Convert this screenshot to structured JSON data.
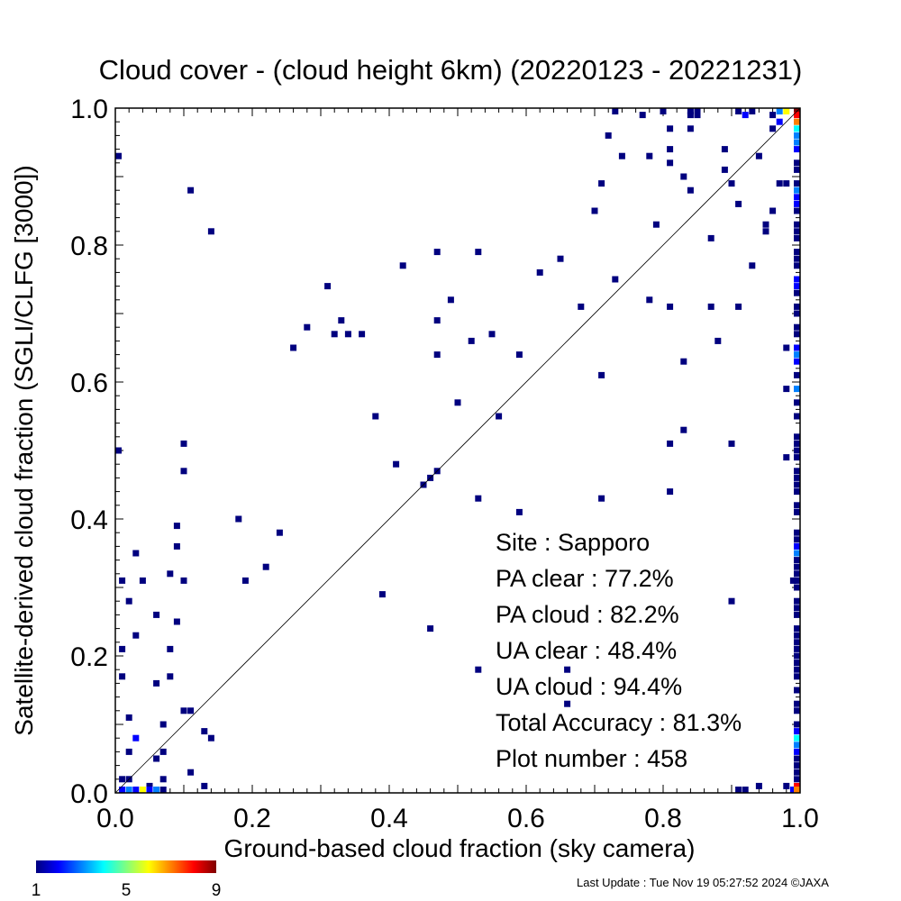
{
  "chart_data": {
    "type": "heatmap",
    "title": "Cloud cover - (cloud height 6km)  (20220123 - 20221231)",
    "xlabel": "Ground-based cloud fraction (sky camera)",
    "ylabel": "Satellite-derived cloud fraction (SGLI/CLFG [3000])",
    "xlim": [
      0,
      1
    ],
    "ylim": [
      0,
      1
    ],
    "x_ticks": [
      "0.0",
      "0.2",
      "0.4",
      "0.6",
      "0.8",
      "1.0"
    ],
    "y_ticks": [
      "0.0",
      "0.2",
      "0.4",
      "0.6",
      "0.8",
      "1.0"
    ],
    "diagonal_line": true,
    "stats": [
      {
        "label": "Site : Sapporo"
      },
      {
        "label": "PA clear :  77.2%"
      },
      {
        "label": "PA cloud :  82.2%"
      },
      {
        "label": "UA clear :  48.4%"
      },
      {
        "label": "UA cloud :  94.4%"
      },
      {
        "label": "Total Accuracy :  81.3%"
      },
      {
        "label": "Plot number :       458"
      }
    ],
    "colorbar": {
      "min": 1,
      "max": 9,
      "ticks": [
        "1",
        "5",
        "9"
      ]
    },
    "points": [
      {
        "x": 0.0,
        "y": 0.93,
        "c": 1
      },
      {
        "x": 0.0,
        "y": 0.5,
        "c": 1
      },
      {
        "x": 0.11,
        "y": 0.88,
        "c": 1
      },
      {
        "x": 0.14,
        "y": 0.82,
        "c": 1
      },
      {
        "x": 0.1,
        "y": 0.51,
        "c": 1
      },
      {
        "x": 0.1,
        "y": 0.47,
        "c": 1
      },
      {
        "x": 0.18,
        "y": 0.4,
        "c": 1
      },
      {
        "x": 0.24,
        "y": 0.38,
        "c": 1
      },
      {
        "x": 0.19,
        "y": 0.31,
        "c": 1
      },
      {
        "x": 0.22,
        "y": 0.33,
        "c": 1
      },
      {
        "x": 0.09,
        "y": 0.39,
        "c": 1
      },
      {
        "x": 0.09,
        "y": 0.36,
        "c": 1
      },
      {
        "x": 0.03,
        "y": 0.35,
        "c": 1
      },
      {
        "x": 0.01,
        "y": 0.31,
        "c": 1
      },
      {
        "x": 0.04,
        "y": 0.31,
        "c": 1
      },
      {
        "x": 0.08,
        "y": 0.32,
        "c": 1
      },
      {
        "x": 0.1,
        "y": 0.31,
        "c": 1
      },
      {
        "x": 0.02,
        "y": 0.28,
        "c": 1
      },
      {
        "x": 0.06,
        "y": 0.26,
        "c": 1
      },
      {
        "x": 0.09,
        "y": 0.25,
        "c": 1
      },
      {
        "x": 0.03,
        "y": 0.23,
        "c": 1
      },
      {
        "x": 0.01,
        "y": 0.21,
        "c": 1
      },
      {
        "x": 0.08,
        "y": 0.21,
        "c": 1
      },
      {
        "x": 0.01,
        "y": 0.17,
        "c": 1
      },
      {
        "x": 0.06,
        "y": 0.16,
        "c": 1
      },
      {
        "x": 0.08,
        "y": 0.17,
        "c": 1
      },
      {
        "x": 0.1,
        "y": 0.12,
        "c": 1
      },
      {
        "x": 0.11,
        "y": 0.12,
        "c": 1
      },
      {
        "x": 0.02,
        "y": 0.11,
        "c": 1
      },
      {
        "x": 0.07,
        "y": 0.1,
        "c": 1
      },
      {
        "x": 0.13,
        "y": 0.09,
        "c": 1
      },
      {
        "x": 0.14,
        "y": 0.08,
        "c": 1
      },
      {
        "x": 0.03,
        "y": 0.08,
        "c": 2
      },
      {
        "x": 0.02,
        "y": 0.06,
        "c": 1
      },
      {
        "x": 0.07,
        "y": 0.06,
        "c": 1
      },
      {
        "x": 0.06,
        "y": 0.05,
        "c": 1
      },
      {
        "x": 0.11,
        "y": 0.03,
        "c": 1
      },
      {
        "x": 0.07,
        "y": 0.02,
        "c": 1
      },
      {
        "x": 0.13,
        "y": 0.01,
        "c": 1
      },
      {
        "x": 0.01,
        "y": 0.02,
        "c": 1
      },
      {
        "x": 0.02,
        "y": 0.02,
        "c": 1
      },
      {
        "x": 0.05,
        "y": 0.01,
        "c": 1
      },
      {
        "x": 0.01,
        "y": 0.0,
        "c": 2
      },
      {
        "x": 0.02,
        "y": 0.0,
        "c": 3
      },
      {
        "x": 0.03,
        "y": 0.0,
        "c": 2
      },
      {
        "x": 0.04,
        "y": 0.0,
        "c": 6
      },
      {
        "x": 0.05,
        "y": 0.0,
        "c": 2
      },
      {
        "x": 0.06,
        "y": 0.0,
        "c": 3
      },
      {
        "x": 0.07,
        "y": 0.0,
        "c": 1
      },
      {
        "x": 0.26,
        "y": 0.65,
        "c": 1
      },
      {
        "x": 0.28,
        "y": 0.68,
        "c": 1
      },
      {
        "x": 0.31,
        "y": 0.74,
        "c": 1
      },
      {
        "x": 0.32,
        "y": 0.67,
        "c": 1
      },
      {
        "x": 0.33,
        "y": 0.69,
        "c": 1
      },
      {
        "x": 0.34,
        "y": 0.67,
        "c": 1
      },
      {
        "x": 0.36,
        "y": 0.67,
        "c": 1
      },
      {
        "x": 0.38,
        "y": 0.55,
        "c": 1
      },
      {
        "x": 0.39,
        "y": 0.29,
        "c": 1
      },
      {
        "x": 0.41,
        "y": 0.48,
        "c": 1
      },
      {
        "x": 0.42,
        "y": 0.77,
        "c": 1
      },
      {
        "x": 0.45,
        "y": 0.45,
        "c": 1
      },
      {
        "x": 0.46,
        "y": 0.46,
        "c": 1
      },
      {
        "x": 0.47,
        "y": 0.47,
        "c": 1
      },
      {
        "x": 0.47,
        "y": 0.79,
        "c": 1
      },
      {
        "x": 0.47,
        "y": 0.69,
        "c": 1
      },
      {
        "x": 0.47,
        "y": 0.64,
        "c": 1
      },
      {
        "x": 0.46,
        "y": 0.24,
        "c": 1
      },
      {
        "x": 0.49,
        "y": 0.72,
        "c": 1
      },
      {
        "x": 0.5,
        "y": 0.57,
        "c": 1
      },
      {
        "x": 0.52,
        "y": 0.66,
        "c": 1
      },
      {
        "x": 0.53,
        "y": 0.79,
        "c": 1
      },
      {
        "x": 0.53,
        "y": 0.43,
        "c": 1
      },
      {
        "x": 0.53,
        "y": 0.18,
        "c": 1
      },
      {
        "x": 0.55,
        "y": 0.67,
        "c": 1
      },
      {
        "x": 0.56,
        "y": 0.55,
        "c": 1
      },
      {
        "x": 0.59,
        "y": 0.64,
        "c": 1
      },
      {
        "x": 0.59,
        "y": 0.41,
        "c": 1
      },
      {
        "x": 0.62,
        "y": 0.76,
        "c": 1
      },
      {
        "x": 0.65,
        "y": 0.78,
        "c": 1
      },
      {
        "x": 0.66,
        "y": 0.18,
        "c": 1
      },
      {
        "x": 0.66,
        "y": 0.13,
        "c": 1
      },
      {
        "x": 0.68,
        "y": 0.71,
        "c": 1
      },
      {
        "x": 0.7,
        "y": 0.85,
        "c": 1
      },
      {
        "x": 0.71,
        "y": 0.89,
        "c": 1
      },
      {
        "x": 0.71,
        "y": 0.61,
        "c": 1
      },
      {
        "x": 0.71,
        "y": 0.43,
        "c": 1
      },
      {
        "x": 0.72,
        "y": 0.96,
        "c": 1
      },
      {
        "x": 0.73,
        "y": 0.75,
        "c": 1
      },
      {
        "x": 0.73,
        "y": 1.0,
        "c": 1
      },
      {
        "x": 0.74,
        "y": 0.93,
        "c": 1
      },
      {
        "x": 0.77,
        "y": 0.99,
        "c": 1
      },
      {
        "x": 0.78,
        "y": 0.93,
        "c": 1
      },
      {
        "x": 0.78,
        "y": 0.72,
        "c": 1
      },
      {
        "x": 0.79,
        "y": 0.83,
        "c": 1
      },
      {
        "x": 0.8,
        "y": 1.0,
        "c": 1
      },
      {
        "x": 0.81,
        "y": 0.97,
        "c": 1
      },
      {
        "x": 0.81,
        "y": 0.94,
        "c": 1
      },
      {
        "x": 0.81,
        "y": 0.92,
        "c": 1
      },
      {
        "x": 0.81,
        "y": 0.71,
        "c": 1
      },
      {
        "x": 0.81,
        "y": 0.51,
        "c": 1
      },
      {
        "x": 0.81,
        "y": 0.44,
        "c": 1
      },
      {
        "x": 0.83,
        "y": 0.9,
        "c": 1
      },
      {
        "x": 0.83,
        "y": 0.63,
        "c": 1
      },
      {
        "x": 0.83,
        "y": 0.53,
        "c": 1
      },
      {
        "x": 0.84,
        "y": 0.88,
        "c": 1
      },
      {
        "x": 0.84,
        "y": 0.99,
        "c": 1
      },
      {
        "x": 0.84,
        "y": 1.0,
        "c": 1
      },
      {
        "x": 0.85,
        "y": 0.99,
        "c": 1
      },
      {
        "x": 0.85,
        "y": 1.0,
        "c": 1
      },
      {
        "x": 0.84,
        "y": 0.97,
        "c": 1
      },
      {
        "x": 0.87,
        "y": 0.81,
        "c": 1
      },
      {
        "x": 0.87,
        "y": 0.71,
        "c": 1
      },
      {
        "x": 0.88,
        "y": 0.66,
        "c": 1
      },
      {
        "x": 0.89,
        "y": 0.94,
        "c": 1
      },
      {
        "x": 0.89,
        "y": 0.91,
        "c": 1
      },
      {
        "x": 0.9,
        "y": 0.89,
        "c": 1
      },
      {
        "x": 0.9,
        "y": 0.51,
        "c": 1
      },
      {
        "x": 0.9,
        "y": 0.28,
        "c": 1
      },
      {
        "x": 0.91,
        "y": 0.86,
        "c": 1
      },
      {
        "x": 0.91,
        "y": 0.71,
        "c": 1
      },
      {
        "x": 0.91,
        "y": 1.0,
        "c": 1
      },
      {
        "x": 0.92,
        "y": 0.99,
        "c": 2
      },
      {
        "x": 0.93,
        "y": 1.0,
        "c": 1
      },
      {
        "x": 0.93,
        "y": 0.77,
        "c": 1
      },
      {
        "x": 0.94,
        "y": 0.93,
        "c": 1
      },
      {
        "x": 0.95,
        "y": 0.83,
        "c": 1
      },
      {
        "x": 0.95,
        "y": 0.82,
        "c": 1
      },
      {
        "x": 0.96,
        "y": 0.85,
        "c": 1
      },
      {
        "x": 0.96,
        "y": 0.99,
        "c": 1
      },
      {
        "x": 0.96,
        "y": 0.97,
        "c": 1
      },
      {
        "x": 0.97,
        "y": 0.98,
        "c": 2
      },
      {
        "x": 0.97,
        "y": 0.89,
        "c": 1
      },
      {
        "x": 0.98,
        "y": 0.89,
        "c": 1
      },
      {
        "x": 0.97,
        "y": 1.0,
        "c": 3
      },
      {
        "x": 0.98,
        "y": 1.0,
        "c": 6
      },
      {
        "x": 0.98,
        "y": 0.59,
        "c": 1
      },
      {
        "x": 0.98,
        "y": 0.49,
        "c": 1
      },
      {
        "x": 0.98,
        "y": 0.65,
        "c": 1
      },
      {
        "x": 0.99,
        "y": 0.31,
        "c": 1
      },
      {
        "x": 0.91,
        "y": 0.0,
        "c": 1
      },
      {
        "x": 0.92,
        "y": 0.0,
        "c": 1
      },
      {
        "x": 0.94,
        "y": 0.01,
        "c": 1
      },
      {
        "x": 0.98,
        "y": 0.01,
        "c": 1
      },
      {
        "x": 0.99,
        "y": 0.0,
        "c": 2
      },
      {
        "x": 1.0,
        "y": 1.0,
        "c": 9
      },
      {
        "x": 1.0,
        "y": 0.99,
        "c": 8
      },
      {
        "x": 1.0,
        "y": 0.98,
        "c": 7
      },
      {
        "x": 1.0,
        "y": 0.97,
        "c": 4
      },
      {
        "x": 1.0,
        "y": 0.96,
        "c": 3
      },
      {
        "x": 1.0,
        "y": 0.95,
        "c": 3
      },
      {
        "x": 1.0,
        "y": 0.94,
        "c": 2
      },
      {
        "x": 1.0,
        "y": 0.92,
        "c": 1
      },
      {
        "x": 1.0,
        "y": 0.91,
        "c": 1
      },
      {
        "x": 1.0,
        "y": 0.89,
        "c": 1
      },
      {
        "x": 1.0,
        "y": 0.88,
        "c": 3
      },
      {
        "x": 1.0,
        "y": 0.87,
        "c": 2
      },
      {
        "x": 1.0,
        "y": 0.86,
        "c": 2
      },
      {
        "x": 1.0,
        "y": 0.85,
        "c": 1
      },
      {
        "x": 1.0,
        "y": 0.83,
        "c": 1
      },
      {
        "x": 1.0,
        "y": 0.82,
        "c": 1
      },
      {
        "x": 1.0,
        "y": 0.81,
        "c": 1
      },
      {
        "x": 1.0,
        "y": 0.79,
        "c": 1
      },
      {
        "x": 1.0,
        "y": 0.78,
        "c": 1
      },
      {
        "x": 1.0,
        "y": 0.77,
        "c": 1
      },
      {
        "x": 1.0,
        "y": 0.75,
        "c": 2
      },
      {
        "x": 1.0,
        "y": 0.74,
        "c": 2
      },
      {
        "x": 1.0,
        "y": 0.73,
        "c": 1
      },
      {
        "x": 1.0,
        "y": 0.71,
        "c": 1
      },
      {
        "x": 1.0,
        "y": 0.7,
        "c": 1
      },
      {
        "x": 1.0,
        "y": 0.68,
        "c": 1
      },
      {
        "x": 1.0,
        "y": 0.67,
        "c": 1
      },
      {
        "x": 1.0,
        "y": 0.65,
        "c": 2
      },
      {
        "x": 1.0,
        "y": 0.64,
        "c": 3
      },
      {
        "x": 1.0,
        "y": 0.63,
        "c": 2
      },
      {
        "x": 1.0,
        "y": 0.61,
        "c": 1
      },
      {
        "x": 1.0,
        "y": 0.59,
        "c": 3
      },
      {
        "x": 1.0,
        "y": 0.57,
        "c": 1
      },
      {
        "x": 1.0,
        "y": 0.55,
        "c": 1
      },
      {
        "x": 1.0,
        "y": 0.52,
        "c": 1
      },
      {
        "x": 1.0,
        "y": 0.51,
        "c": 1
      },
      {
        "x": 1.0,
        "y": 0.5,
        "c": 1
      },
      {
        "x": 1.0,
        "y": 0.49,
        "c": 1
      },
      {
        "x": 1.0,
        "y": 0.47,
        "c": 1
      },
      {
        "x": 1.0,
        "y": 0.46,
        "c": 1
      },
      {
        "x": 1.0,
        "y": 0.45,
        "c": 1
      },
      {
        "x": 1.0,
        "y": 0.44,
        "c": 1
      },
      {
        "x": 1.0,
        "y": 0.42,
        "c": 1
      },
      {
        "x": 1.0,
        "y": 0.41,
        "c": 1
      },
      {
        "x": 1.0,
        "y": 0.38,
        "c": 1
      },
      {
        "x": 1.0,
        "y": 0.37,
        "c": 1
      },
      {
        "x": 1.0,
        "y": 0.36,
        "c": 2
      },
      {
        "x": 1.0,
        "y": 0.35,
        "c": 3
      },
      {
        "x": 1.0,
        "y": 0.34,
        "c": 1
      },
      {
        "x": 1.0,
        "y": 0.33,
        "c": 1
      },
      {
        "x": 1.0,
        "y": 0.32,
        "c": 1
      },
      {
        "x": 1.0,
        "y": 0.31,
        "c": 1
      },
      {
        "x": 1.0,
        "y": 0.3,
        "c": 1
      },
      {
        "x": 1.0,
        "y": 0.28,
        "c": 1
      },
      {
        "x": 1.0,
        "y": 0.27,
        "c": 1
      },
      {
        "x": 1.0,
        "y": 0.26,
        "c": 1
      },
      {
        "x": 1.0,
        "y": 0.24,
        "c": 1
      },
      {
        "x": 1.0,
        "y": 0.23,
        "c": 1
      },
      {
        "x": 1.0,
        "y": 0.22,
        "c": 1
      },
      {
        "x": 1.0,
        "y": 0.21,
        "c": 1
      },
      {
        "x": 1.0,
        "y": 0.2,
        "c": 1
      },
      {
        "x": 1.0,
        "y": 0.19,
        "c": 1
      },
      {
        "x": 1.0,
        "y": 0.18,
        "c": 1
      },
      {
        "x": 1.0,
        "y": 0.17,
        "c": 1
      },
      {
        "x": 1.0,
        "y": 0.15,
        "c": 1
      },
      {
        "x": 1.0,
        "y": 0.13,
        "c": 1
      },
      {
        "x": 1.0,
        "y": 0.12,
        "c": 1
      },
      {
        "x": 1.0,
        "y": 0.1,
        "c": 1
      },
      {
        "x": 1.0,
        "y": 0.09,
        "c": 2
      },
      {
        "x": 1.0,
        "y": 0.08,
        "c": 4
      },
      {
        "x": 1.0,
        "y": 0.07,
        "c": 3
      },
      {
        "x": 1.0,
        "y": 0.06,
        "c": 2
      },
      {
        "x": 1.0,
        "y": 0.05,
        "c": 1
      },
      {
        "x": 1.0,
        "y": 0.04,
        "c": 1
      },
      {
        "x": 1.0,
        "y": 0.03,
        "c": 1
      },
      {
        "x": 1.0,
        "y": 0.02,
        "c": 1
      },
      {
        "x": 1.0,
        "y": 0.01,
        "c": 8
      },
      {
        "x": 1.0,
        "y": 0.0,
        "c": 7
      }
    ]
  },
  "footer": {
    "last_update": "Last Update : Tue Nov 19 05:27:52 2024  ©JAXA"
  }
}
